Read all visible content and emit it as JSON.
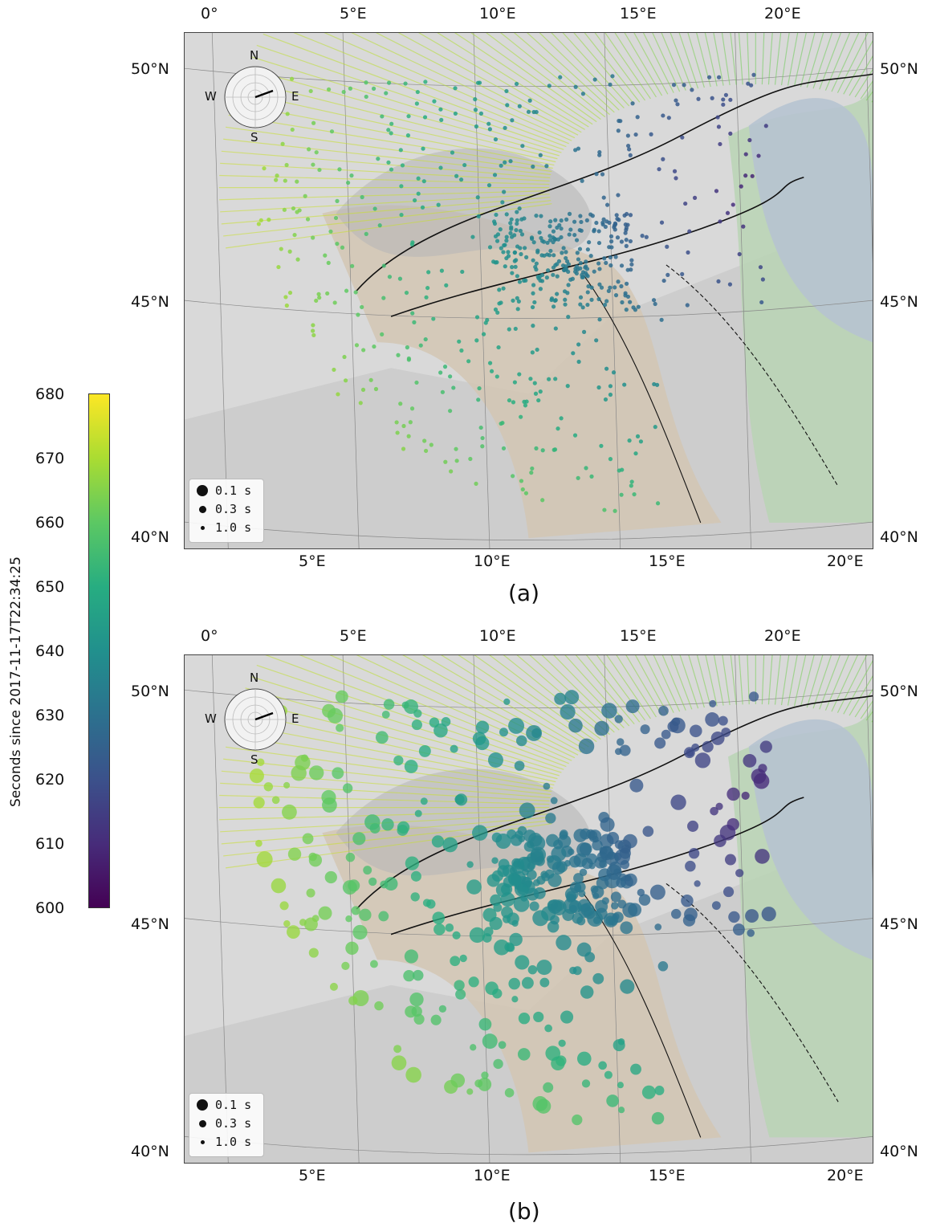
{
  "colorbar": {
    "label": "Seconds since 2017-11-17T22:34:25",
    "min": 600,
    "max": 680,
    "ticks": [
      "680",
      "670",
      "660",
      "650",
      "640",
      "630",
      "620",
      "610",
      "600"
    ]
  },
  "panels": [
    {
      "caption": "(a)",
      "top_lon_labels": [
        "0°",
        "5°E",
        "10°E",
        "15°E",
        "20°E"
      ],
      "bottom_lon_labels": [
        "5°E",
        "10°E",
        "15°E",
        "20°E"
      ],
      "left_lat_labels": [
        "50°N",
        "45°N",
        "40°N"
      ],
      "right_lat_labels": [
        "50°N",
        "45°N",
        "40°N"
      ],
      "compass": {
        "n": "N",
        "s": "S",
        "e": "E",
        "w": "W"
      },
      "legend": [
        {
          "label": "0.1 s",
          "marker": "large"
        },
        {
          "label": "0.3 s",
          "marker": "medium"
        },
        {
          "label": "1.0 s",
          "marker": "small"
        }
      ],
      "marker_style": "small-uniform"
    },
    {
      "caption": "(b)",
      "top_lon_labels": [
        "0°",
        "5°E",
        "10°E",
        "15°E",
        "20°E"
      ],
      "bottom_lon_labels": [
        "5°E",
        "10°E",
        "15°E",
        "20°E"
      ],
      "left_lat_labels": [
        "50°N",
        "45°N",
        "40°N"
      ],
      "right_lat_labels": [
        "50°N",
        "45°N",
        "40°N"
      ],
      "compass": {
        "n": "N",
        "s": "S",
        "e": "E",
        "w": "W"
      },
      "legend": [
        {
          "label": "0.1 s",
          "marker": "large"
        },
        {
          "label": "0.3 s",
          "marker": "medium"
        },
        {
          "label": "1.0 s",
          "marker": "small"
        }
      ],
      "marker_style": "large-variable"
    }
  ],
  "colors": {
    "land": "#d9d9d9",
    "sea": "#cdcdcd",
    "alps_zone": "#b7b7b7",
    "foreland_green": "#b9d3b4",
    "basin_blue": "#b6c3d0",
    "orogen_tan": "#d2c5b3",
    "fault_line": "#111111"
  }
}
